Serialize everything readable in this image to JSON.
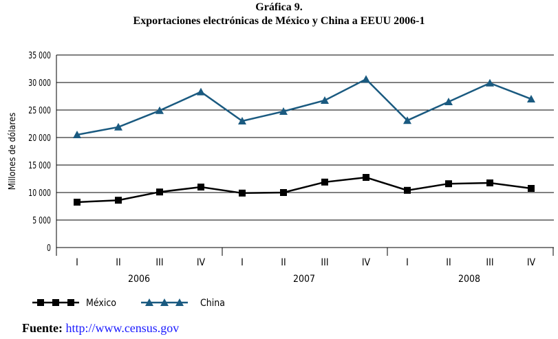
{
  "chart_data": {
    "type": "line",
    "title": "Gráfica 9.",
    "subtitle": "Exportaciones electrónicas de México y China a EEUU 2006-1",
    "ylabel": "Millones de dólares",
    "xlabel": "",
    "ylim": [
      0,
      35000
    ],
    "yticks": [
      "0",
      "5 000",
      "10 000",
      "15 000",
      "20 000",
      "25 000",
      "30 000",
      "35 000"
    ],
    "categories": [
      "I",
      "II",
      "III",
      "IV",
      "I",
      "II",
      "III",
      "IV",
      "I",
      "II",
      "III",
      "IV"
    ],
    "groups": [
      "2006",
      "2007",
      "2008"
    ],
    "grid": true,
    "legend": "bottom-left",
    "series": [
      {
        "name": "México",
        "color": "#000000",
        "marker": "square",
        "values": [
          8250,
          8600,
          10100,
          11000,
          9900,
          10000,
          11900,
          12750,
          10400,
          11600,
          11750,
          10750
        ]
      },
      {
        "name": "China",
        "color": "#1a5a80",
        "marker": "triangle",
        "values": [
          20500,
          21900,
          24900,
          28300,
          23000,
          24750,
          26750,
          30600,
          23100,
          26500,
          29900,
          27000
        ]
      }
    ]
  },
  "source": {
    "label": "Fuente:",
    "link": "http://www.census.gov"
  }
}
